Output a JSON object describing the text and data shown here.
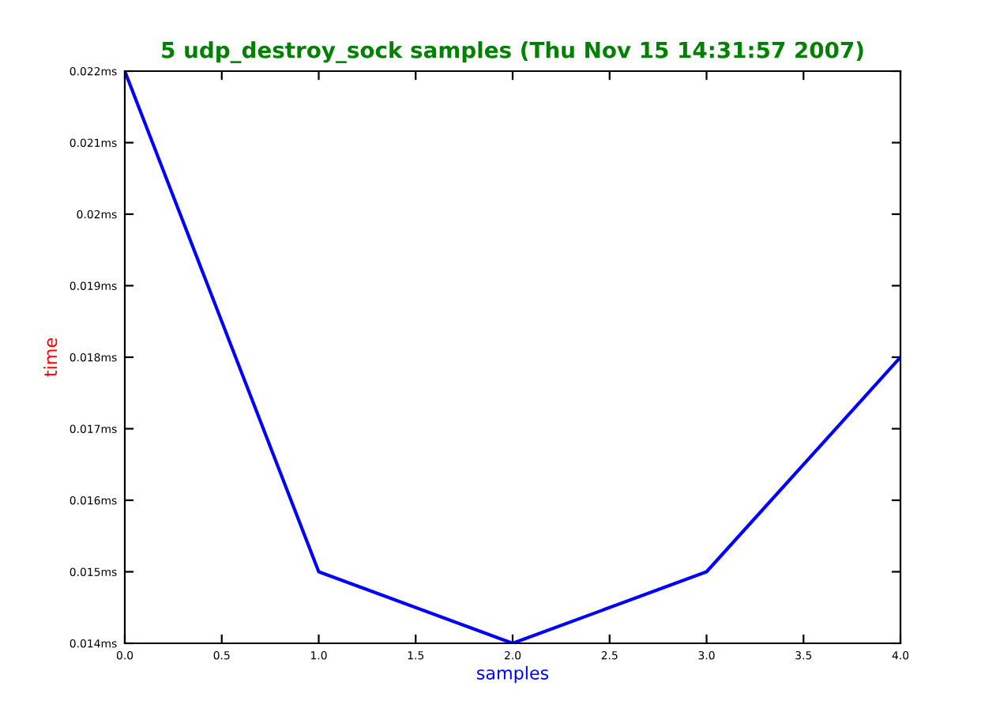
{
  "chart_data": {
    "type": "line",
    "title": "5 udp_destroy_sock samples (Thu Nov 15 14:31:57 2007)",
    "xlabel": "samples",
    "ylabel": "time",
    "x": [
      0,
      1,
      2,
      3,
      4
    ],
    "series": [
      {
        "color": "#0000ff",
        "values": [
          0.022,
          0.015,
          0.014,
          0.015,
          0.018
        ]
      }
    ],
    "xlim": [
      0,
      4
    ],
    "ylim": [
      0.014,
      0.022
    ],
    "xticks": [
      {
        "value": 0,
        "label": "0.0"
      },
      {
        "value": 0.5,
        "label": "0.5"
      },
      {
        "value": 1,
        "label": "1.0"
      },
      {
        "value": 1.5,
        "label": "1.5"
      },
      {
        "value": 2,
        "label": "2.0"
      },
      {
        "value": 2.5,
        "label": "2.5"
      },
      {
        "value": 3,
        "label": "3.0"
      },
      {
        "value": 3.5,
        "label": "3.5"
      },
      {
        "value": 4,
        "label": "4.0"
      }
    ],
    "yticks": [
      {
        "value": 0.014,
        "label": "0.014ms"
      },
      {
        "value": 0.015,
        "label": "0.015ms"
      },
      {
        "value": 0.016,
        "label": "0.016ms"
      },
      {
        "value": 0.017,
        "label": "0.017ms"
      },
      {
        "value": 0.018,
        "label": "0.018ms"
      },
      {
        "value": 0.019,
        "label": "0.019ms"
      },
      {
        "value": 0.02,
        "label": "0.02ms"
      },
      {
        "value": 0.021,
        "label": "0.021ms"
      },
      {
        "value": 0.022,
        "label": "0.022ms"
      }
    ],
    "grid": false,
    "legend": false,
    "marker": "none",
    "line_style": "solid"
  }
}
